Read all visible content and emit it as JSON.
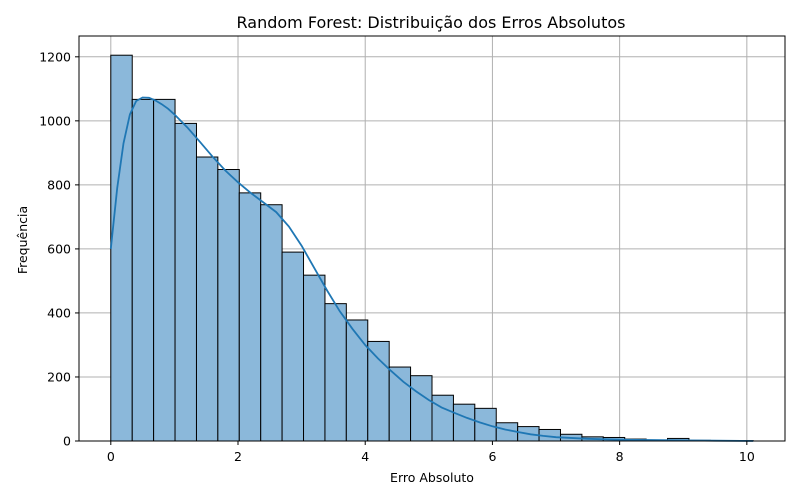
{
  "chart_data": {
    "type": "bar",
    "title": "Random Forest: Distribuição dos Erros Absolutos",
    "xlabel": "Erro Absoluto",
    "ylabel": "Frequência",
    "xlim": [
      -0.5,
      10.6
    ],
    "ylim": [
      0,
      1265
    ],
    "xticks": [
      0,
      2,
      4,
      6,
      8,
      10
    ],
    "yticks": [
      0,
      200,
      400,
      600,
      800,
      1000,
      1200
    ],
    "grid": true,
    "bin_edges": [
      0.0,
      0.337,
      0.673,
      1.01,
      1.347,
      1.683,
      2.02,
      2.357,
      2.693,
      3.03,
      3.367,
      3.703,
      4.04,
      4.377,
      4.713,
      5.05,
      5.387,
      5.723,
      6.06,
      6.397,
      6.733,
      7.07,
      7.407,
      7.743,
      8.08,
      8.417,
      8.753,
      9.09,
      9.427,
      9.763,
      10.1
    ],
    "values": [
      1205,
      1067,
      1067,
      992,
      887,
      848,
      775,
      738,
      590,
      518,
      429,
      378,
      311,
      231,
      204,
      143,
      115,
      102,
      57,
      45,
      36,
      21,
      13,
      11,
      6,
      3,
      8,
      2,
      1,
      1
    ],
    "kde": {
      "name": "KDE",
      "x": [
        0.0,
        0.1,
        0.2,
        0.3,
        0.4,
        0.5,
        0.6,
        0.7,
        0.8,
        0.9,
        1.0,
        1.2,
        1.4,
        1.6,
        1.8,
        2.0,
        2.2,
        2.4,
        2.6,
        2.8,
        3.0,
        3.2,
        3.4,
        3.6,
        3.8,
        4.0,
        4.2,
        4.4,
        4.6,
        4.8,
        5.0,
        5.2,
        5.4,
        5.6,
        5.8,
        6.0,
        6.2,
        6.4,
        6.6,
        6.8,
        7.0,
        7.5,
        8.0,
        8.5,
        9.0,
        9.5,
        10.1
      ],
      "y": [
        600,
        790,
        930,
        1020,
        1062,
        1073,
        1072,
        1064,
        1052,
        1038,
        1020,
        980,
        935,
        888,
        845,
        808,
        775,
        745,
        715,
        670,
        610,
        540,
        470,
        405,
        350,
        300,
        258,
        220,
        185,
        155,
        128,
        105,
        88,
        72,
        58,
        46,
        36,
        28,
        21,
        16,
        12,
        7,
        4,
        3,
        2,
        1,
        0
      ],
      "color": "#1f77b4"
    },
    "bar_color": "#8bb8da",
    "edge_color": "#000000"
  }
}
